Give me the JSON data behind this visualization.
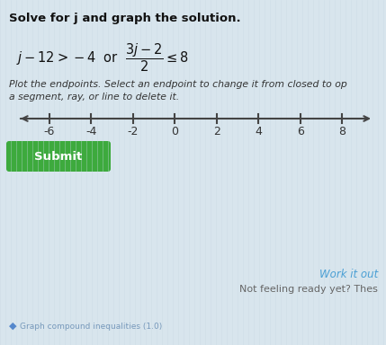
{
  "title": "Solve for j and graph the solution.",
  "instruction_text": "Plot the endpoints. Select an endpoint to change it from closed to op\na segment, ray, or line to delete it.",
  "number_line_min": -7.5,
  "number_line_max": 9.5,
  "tick_positions": [
    -6,
    -4,
    -2,
    0,
    2,
    4,
    6,
    8
  ],
  "tick_labels": [
    "-6",
    "-4",
    "-2",
    "0",
    "2",
    "4",
    "6",
    "8"
  ],
  "submit_label": "Submit",
  "submit_color": "#3daa3d",
  "submit_text_color": "#ffffff",
  "work_it_out_text": "Work it out",
  "work_it_out_color": "#4a9fd4",
  "not_ready_text": "Not feeling ready yet? Thes",
  "not_ready_color": "#666666",
  "bottom_label": "Graph compound inequalities (1.0)",
  "bottom_label_color": "#7799bb",
  "background_color": "#d8e5ed",
  "number_line_color": "#444444",
  "tick_label_color": "#333333",
  "arrow_color": "#444444",
  "title_color": "#111111",
  "instruction_color": "#333333"
}
